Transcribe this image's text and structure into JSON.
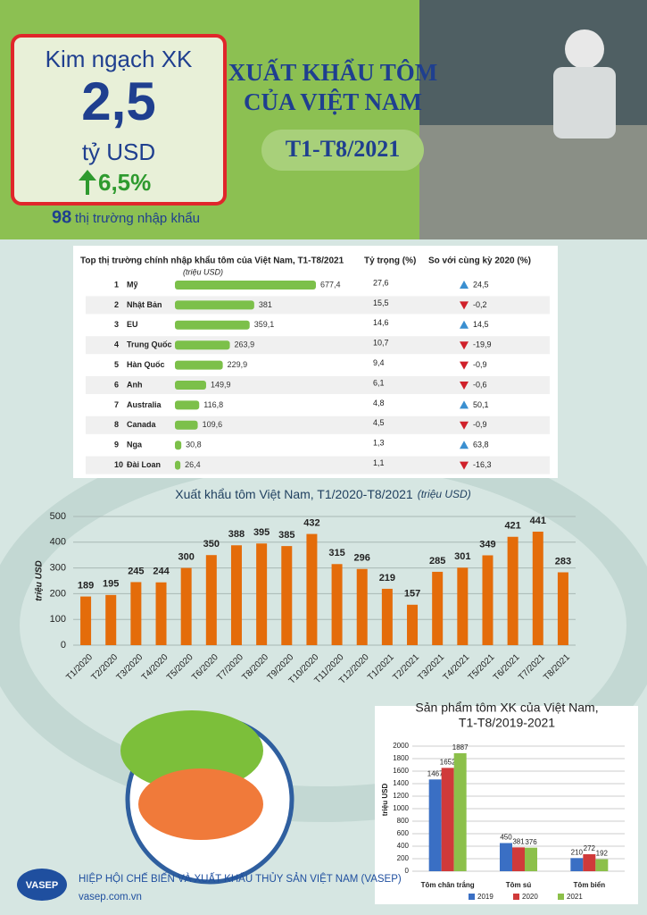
{
  "header": {
    "box_label": "Kim ngạch XK",
    "box_value": "2,5",
    "box_unit": "tỷ USD",
    "growth": "6,5%",
    "markets_count": "98",
    "markets_text": "thị trường nhập khẩu",
    "title_line1": "XUẤT KHẨU TÔM",
    "title_line2": "CỦA VIỆT NAM",
    "period": "T1-T8/2021"
  },
  "chart_data": [
    {
      "type": "hbar-table",
      "title": "Top thị trường chính nhập khẩu tôm của Việt Nam, T1-T8/2021",
      "subtitle": "(triệu USD)",
      "share_header": "Tỷ trọng (%)",
      "change_header": "So với cùng kỳ 2020 (%)",
      "ranks": [
        1,
        2,
        3,
        4,
        5,
        6,
        7,
        8,
        9,
        10
      ],
      "categories": [
        "Mỹ",
        "Nhật Bản",
        "EU",
        "Trung Quốc",
        "Hàn Quốc",
        "Anh",
        "Australia",
        "Canada",
        "Nga",
        "Đài Loan"
      ],
      "values": [
        677.4,
        381,
        359.1,
        263.9,
        229.9,
        149.9,
        116.8,
        109.6,
        30.8,
        26.4
      ],
      "value_labels": [
        "677,4",
        "381",
        "359,1",
        "263,9",
        "229,9",
        "149,9",
        "116,8",
        "109,6",
        "30,8",
        "26,4"
      ],
      "shares": [
        27.6,
        15.5,
        14.6,
        10.7,
        9.4,
        6.1,
        4.8,
        4.5,
        1.3,
        1.1
      ],
      "share_labels": [
        "27,6",
        "15,5",
        "14,6",
        "10,7",
        "9,4",
        "6,1",
        "4,8",
        "4,5",
        "1,3",
        "1,1"
      ],
      "changes": [
        24.5,
        -0.2,
        14.5,
        -19.9,
        -0.9,
        -0.6,
        50.1,
        -0.9,
        63.8,
        -16.3
      ],
      "change_labels": [
        "24,5",
        "-0,2",
        "14,5",
        "-19,9",
        "-0,9",
        "-0,6",
        "50,1",
        "-0,9",
        "63,8",
        "-16,3"
      ],
      "color": "#7cc04a",
      "up_color": "#3a8fd0",
      "down_color": "#d0202a"
    },
    {
      "type": "bar",
      "title": "Xuất khẩu tôm Việt Nam, T1/2020-T8/2021",
      "unit": "(triệu USD)",
      "ylabel": "triệu USD",
      "categories": [
        "T1/2020",
        "T2/2020",
        "T3/2020",
        "T4/2020",
        "T5/2020",
        "T6/2020",
        "T7/2020",
        "T8/2020",
        "T9/2020",
        "T10/2020",
        "T11/2020",
        "T12/2020",
        "T1/2021",
        "T2/2021",
        "T3/2021",
        "T4/2021",
        "T5/2021",
        "T6/2021",
        "T7/2021",
        "T8/2021"
      ],
      "values": [
        189,
        195,
        245,
        244,
        300,
        350,
        388,
        395,
        385,
        432,
        315,
        296,
        219,
        157,
        285,
        301,
        349,
        421,
        441,
        283
      ],
      "color": "#e46c0a",
      "ylim": [
        0,
        500
      ],
      "yticks": [
        0,
        100,
        200,
        300,
        400,
        500
      ],
      "grid": true
    },
    {
      "type": "grouped-bar",
      "title": [
        "Sản phẩm tôm XK của Việt Nam,",
        "T1-T8/2019-2021"
      ],
      "ylabel": "triệu USD",
      "categories": [
        "Tôm chân trắng",
        "Tôm sú",
        "Tôm biển"
      ],
      "series": [
        {
          "name": "2019",
          "color": "#3a6fc4",
          "values": [
            1467,
            450,
            210
          ]
        },
        {
          "name": "2020",
          "color": "#d03a3a",
          "values": [
            1652,
            381,
            272
          ]
        },
        {
          "name": "2021",
          "color": "#8cc04a",
          "values": [
            1887,
            376,
            192
          ]
        }
      ],
      "ylim": [
        0,
        2000
      ],
      "yticks": [
        0,
        200,
        400,
        600,
        800,
        1000,
        1200,
        1400,
        1600,
        1800,
        2000
      ],
      "grid": true,
      "legend": "bottom"
    }
  ],
  "footer": {
    "logo": "VASEP",
    "org": "HIỆP HỘI CHẾ BIẾN VÀ XUẤT KHẨU THỦY SẢN VIỆT NAM (VASEP)",
    "site": "vasep.com.vn"
  }
}
